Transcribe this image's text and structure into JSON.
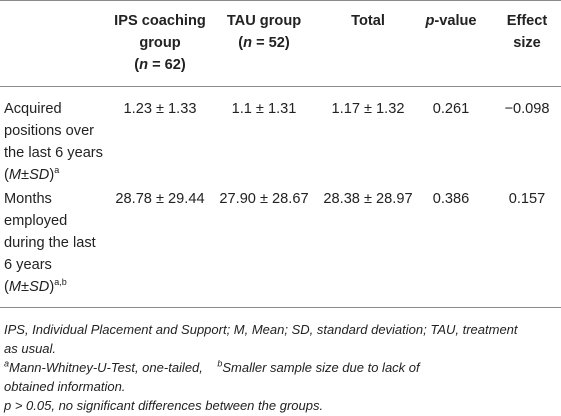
{
  "table": {
    "headers": {
      "ips_line1": "IPS coaching",
      "ips_line2": "group",
      "ips_n": "(n = 62)",
      "tau_line1": "TAU group",
      "tau_n": "(n = 52)",
      "total": "Total",
      "pvalue": "p-value",
      "effect_line1": "Effect",
      "effect_line2": "size"
    },
    "rows": [
      {
        "label_lines": [
          "Acquired",
          "positions over",
          "the last 6 years",
          "(M±SD)"
        ],
        "label_sup": "a",
        "ips": "1.23 ± 1.33",
        "tau": "1.1 ± 1.31",
        "total": "1.17 ± 1.32",
        "p": "0.261",
        "effect": "−0.098"
      },
      {
        "label_lines": [
          "Months",
          "employed",
          "during the last",
          "6 years",
          "(M±SD)"
        ],
        "label_sup": "a,b",
        "ips": "28.78 ± 29.44",
        "tau": "27.90 ± 28.67",
        "total": "28.38 ± 28.97",
        "p": "0.386",
        "effect": "0.157"
      }
    ]
  },
  "notes": {
    "abbrev_line1": "IPS, Individual Placement and Support; M, Mean; SD, standard deviation; TAU, treatment",
    "abbrev_line2": "as usual.",
    "sup_a": "a",
    "note_a": "Mann-Whitney-U-Test, one-tailed,",
    "sup_b": "b",
    "note_b_line1": "Smaller sample size due to lack of",
    "note_b_line2": "obtained information.",
    "significance": "p > 0.05, no significant differences between the groups."
  }
}
